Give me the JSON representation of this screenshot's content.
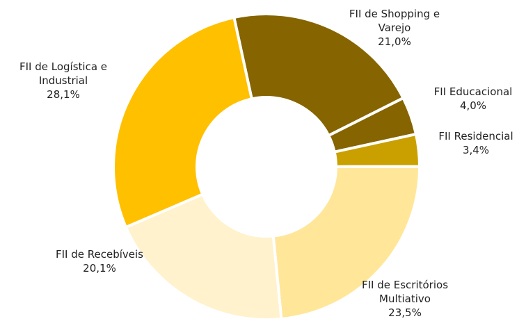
{
  "chart_data": {
    "type": "donut",
    "categories": [
      "FII de Shopping e Varejo",
      "FII Educacional",
      "FII Residencial",
      "FII de Escritórios Multiativo",
      "FII de Recebíveis",
      "FII de Logística e Industrial"
    ],
    "values": [
      21.0,
      4.0,
      3.4,
      23.5,
      20.1,
      28.1
    ],
    "value_labels": [
      "21,0%",
      "4,0%",
      "3,4%",
      "23,5%",
      "20,1%",
      "28,1%"
    ],
    "colors": [
      "#866500",
      "#866500",
      "#c9a000",
      "#ffe699",
      "#fff2cc",
      "#ffc000"
    ]
  }
}
